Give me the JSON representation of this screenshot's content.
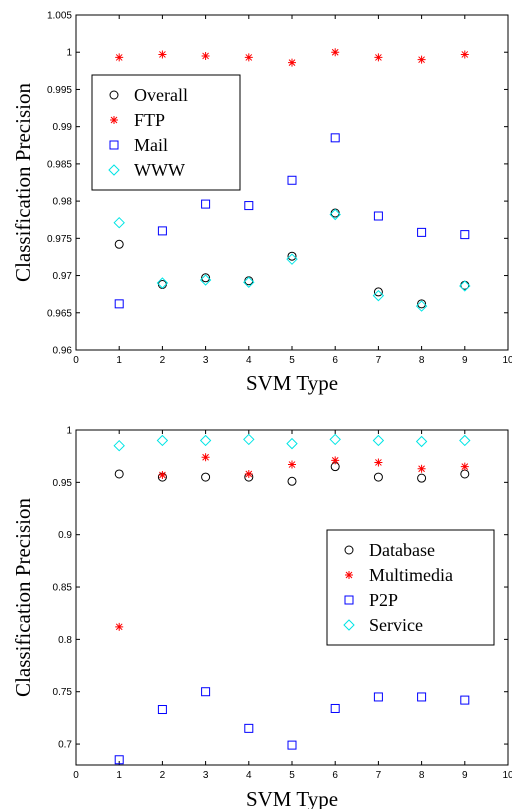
{
  "chart_data": [
    {
      "type": "scatter",
      "xlabel": "SVM Type",
      "ylabel": "Classification Precision",
      "xlim": [
        0,
        10
      ],
      "ylim": [
        0.96,
        1.005
      ],
      "xticks": [
        "0",
        "1",
        "2",
        "3",
        "4",
        "5",
        "6",
        "7",
        "8",
        "9",
        "10"
      ],
      "yticks": [
        "0.96",
        "0.965",
        "0.97",
        "0.975",
        "0.98",
        "0.985",
        "0.99",
        "0.995",
        "1",
        "1.005"
      ],
      "x": [
        1,
        2,
        3,
        4,
        5,
        6,
        7,
        8,
        9
      ],
      "legend_position": "left",
      "series": [
        {
          "name": "Overall",
          "marker": "circle",
          "color": "#000000",
          "values": [
            0.9742,
            0.9688,
            0.9697,
            0.9693,
            0.9726,
            0.9784,
            0.9678,
            0.9662,
            0.9687
          ]
        },
        {
          "name": "FTP",
          "marker": "star",
          "color": "#ff0000",
          "values": [
            0.9993,
            0.9997,
            0.9995,
            0.9993,
            0.9986,
            1.0,
            0.9993,
            0.999,
            0.9997
          ]
        },
        {
          "name": "Mail",
          "marker": "square",
          "color": "#0000ff",
          "values": [
            0.9662,
            0.976,
            0.9796,
            0.9794,
            0.9828,
            0.9885,
            0.978,
            0.9758,
            0.9755
          ]
        },
        {
          "name": "WWW",
          "marker": "diamond",
          "color": "#00e5e5",
          "values": [
            0.9771,
            0.969,
            0.9694,
            0.9691,
            0.9722,
            0.9782,
            0.9673,
            0.9659,
            0.9686
          ]
        }
      ]
    },
    {
      "type": "scatter",
      "xlabel": "SVM Type",
      "ylabel": "Classification Precision",
      "xlim": [
        0,
        10
      ],
      "ylim": [
        0.68,
        1.0
      ],
      "xticks": [
        "0",
        "1",
        "2",
        "3",
        "4",
        "5",
        "6",
        "7",
        "8",
        "9",
        "10"
      ],
      "yticks": [
        "0.7",
        "0.75",
        "0.8",
        "0.85",
        "0.9",
        "0.95",
        "1"
      ],
      "x": [
        1,
        2,
        3,
        4,
        5,
        6,
        7,
        8,
        9
      ],
      "legend_position": "right",
      "series": [
        {
          "name": "Database",
          "marker": "circle",
          "color": "#000000",
          "values": [
            0.958,
            0.955,
            0.955,
            0.955,
            0.951,
            0.965,
            0.955,
            0.954,
            0.958
          ]
        },
        {
          "name": "Multimedia",
          "marker": "star",
          "color": "#ff0000",
          "values": [
            0.812,
            0.957,
            0.974,
            0.958,
            0.967,
            0.971,
            0.969,
            0.963,
            0.965
          ]
        },
        {
          "name": "P2P",
          "marker": "square",
          "color": "#0000ff",
          "values": [
            0.685,
            0.733,
            0.75,
            0.715,
            0.699,
            0.734,
            0.745,
            0.745,
            0.742
          ]
        },
        {
          "name": "Service",
          "marker": "diamond",
          "color": "#00e5e5",
          "values": [
            0.985,
            0.99,
            0.99,
            0.991,
            0.987,
            0.991,
            0.99,
            0.989,
            0.99
          ]
        }
      ]
    }
  ]
}
